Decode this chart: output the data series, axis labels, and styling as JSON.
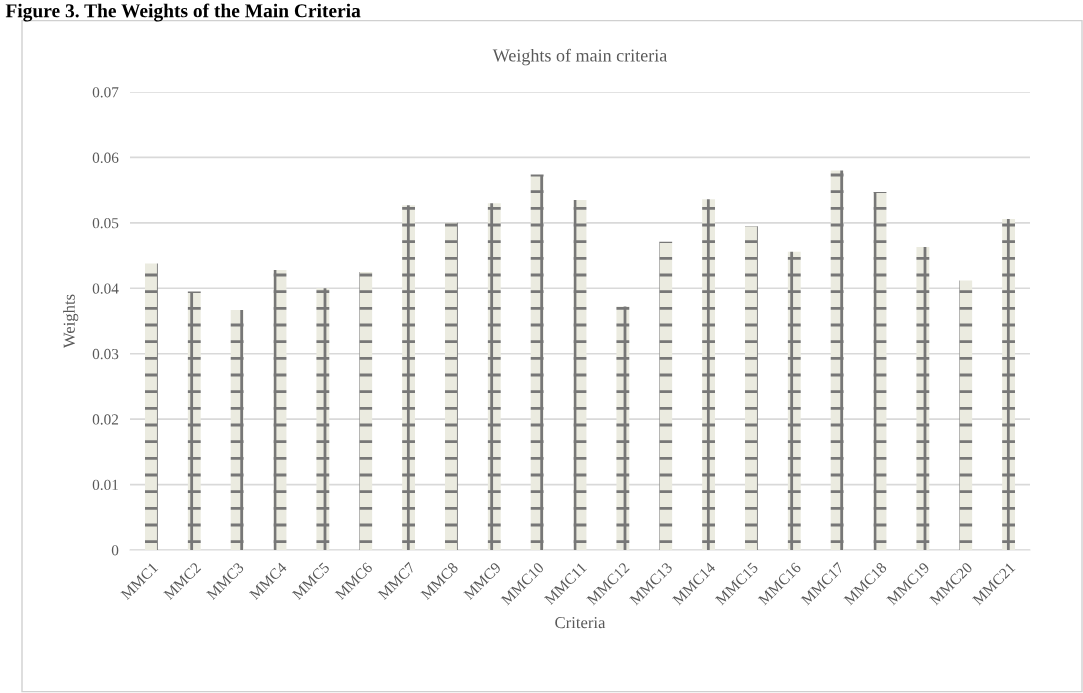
{
  "chart_data": {
    "type": "bar",
    "title": "Weights of main criteria",
    "xlabel": "Criteria",
    "ylabel": "Weights",
    "annotations": [
      "Figure 3. The Weights of the Main Criteria"
    ],
    "categories": [
      "MMC1",
      "MMC2",
      "MMC3",
      "MMC4",
      "MMC5",
      "MMC6",
      "MMC7",
      "MMC8",
      "MMC9",
      "MMC10",
      "MMC11",
      "MMC12",
      "MMC13",
      "MMC14",
      "MMC15",
      "MMC16",
      "MMC17",
      "MMC18",
      "MMC19",
      "MMC20",
      "MMC21"
    ],
    "values": [
      0.0438,
      0.0395,
      0.0367,
      0.0428,
      0.04,
      0.0425,
      0.0527,
      0.05,
      0.053,
      0.0574,
      0.0535,
      0.0372,
      0.0471,
      0.0536,
      0.0495,
      0.0456,
      0.058,
      0.0547,
      0.0463,
      0.0412,
      0.0506
    ],
    "color": "#ebebe0",
    "ylim": [
      0,
      0.07
    ],
    "yticks": [
      {
        "value": 0,
        "label": "0"
      },
      {
        "value": 0.01,
        "label": "0.01"
      },
      {
        "value": 0.02,
        "label": "0.02"
      },
      {
        "value": 0.03,
        "label": "0.03"
      },
      {
        "value": 0.04,
        "label": "0.04"
      },
      {
        "value": 0.05,
        "label": "0.05"
      },
      {
        "value": 0.06,
        "label": "0.06"
      },
      {
        "value": 0.07,
        "label": "0.07"
      }
    ],
    "grid": "y",
    "legend": false
  }
}
